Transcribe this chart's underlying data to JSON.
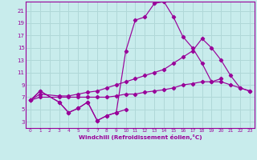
{
  "xlabel": "Windchill (Refroidissement éolien,°C)",
  "background_color": "#c8ecec",
  "grid_color": "#b0d8d8",
  "line_color": "#990099",
  "xlim": [
    -0.5,
    23.5
  ],
  "ylim": [
    2,
    22.5
  ],
  "yticks": [
    3,
    5,
    7,
    9,
    11,
    13,
    15,
    17,
    19,
    21
  ],
  "xticks": [
    0,
    1,
    2,
    3,
    4,
    5,
    6,
    7,
    8,
    9,
    10,
    11,
    12,
    13,
    14,
    15,
    16,
    17,
    18,
    19,
    20,
    21,
    22,
    23
  ],
  "series": {
    "arc": {
      "x": [
        0,
        1,
        3,
        4,
        5,
        6,
        7,
        8,
        9,
        10,
        11,
        12,
        13,
        14,
        15,
        16,
        17,
        18,
        19,
        20
      ],
      "y": [
        6.5,
        8.0,
        6.2,
        4.5,
        5.2,
        6.2,
        3.2,
        4.0,
        4.5,
        14.5,
        19.5,
        20.0,
        22.2,
        22.5,
        20.0,
        16.8,
        15.0,
        12.5,
        9.5,
        10.0
      ]
    },
    "noisy": {
      "x": [
        0,
        1,
        3,
        4,
        5,
        6,
        7,
        8,
        9,
        10
      ],
      "y": [
        6.5,
        8.0,
        6.2,
        4.5,
        5.2,
        6.2,
        3.2,
        4.0,
        4.5,
        5.0
      ]
    },
    "linear1": {
      "x": [
        0,
        1,
        3,
        4,
        5,
        6,
        7,
        8,
        9,
        10,
        11,
        12,
        13,
        14,
        15,
        16,
        17,
        18,
        19,
        20,
        21,
        22,
        23
      ],
      "y": [
        6.5,
        7.5,
        7.2,
        7.2,
        7.5,
        7.8,
        8.0,
        8.5,
        9.0,
        9.5,
        10.0,
        10.5,
        11.0,
        11.5,
        12.5,
        13.5,
        14.5,
        16.5,
        15.0,
        13.0,
        10.5,
        8.5,
        8.0
      ]
    },
    "linear2": {
      "x": [
        0,
        1,
        3,
        4,
        5,
        6,
        7,
        8,
        9,
        10,
        11,
        12,
        13,
        14,
        15,
        16,
        17,
        18,
        19,
        20,
        21,
        22,
        23
      ],
      "y": [
        6.5,
        7.0,
        7.0,
        7.0,
        7.0,
        7.0,
        7.0,
        7.0,
        7.2,
        7.5,
        7.5,
        7.8,
        8.0,
        8.2,
        8.5,
        9.0,
        9.2,
        9.5,
        9.5,
        9.5,
        9.0,
        8.5,
        8.0
      ]
    }
  }
}
